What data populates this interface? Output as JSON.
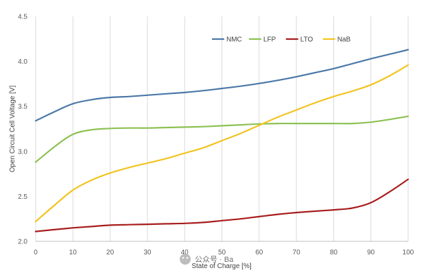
{
  "chart_data": {
    "type": "line",
    "xlabel": "State of Charge [%]",
    "ylabel": "Open Circuit Cell Voltage [V]",
    "xlim": [
      0,
      100
    ],
    "ylim": [
      2.0,
      4.5
    ],
    "x_ticks": [
      0,
      10,
      20,
      30,
      40,
      50,
      60,
      70,
      80,
      90,
      100
    ],
    "y_ticks": [
      2.0,
      2.5,
      3.0,
      3.5,
      4.0,
      4.5
    ],
    "x_tick_labels": [
      "0",
      "10",
      "20",
      "30",
      "40",
      "50",
      "60",
      "70",
      "80",
      "90",
      "100"
    ],
    "y_tick_labels": [
      "2.0",
      "2.5",
      "3.0",
      "3.5",
      "4.0",
      "4.5"
    ],
    "grid": "vertical",
    "legend_position": "top-right",
    "x": [
      0,
      5,
      10,
      15,
      20,
      25,
      30,
      35,
      40,
      45,
      50,
      55,
      60,
      65,
      70,
      75,
      80,
      85,
      90,
      95,
      100
    ],
    "series": [
      {
        "name": "NMC",
        "color": "#4a78a8",
        "values": [
          3.34,
          3.44,
          3.53,
          3.575,
          3.6,
          3.61,
          3.625,
          3.64,
          3.655,
          3.675,
          3.7,
          3.725,
          3.755,
          3.79,
          3.83,
          3.875,
          3.92,
          3.975,
          4.03,
          4.08,
          4.13
        ]
      },
      {
        "name": "LFP",
        "color": "#8cc152",
        "values": [
          2.88,
          3.05,
          3.19,
          3.24,
          3.255,
          3.26,
          3.26,
          3.265,
          3.27,
          3.275,
          3.285,
          3.295,
          3.305,
          3.31,
          3.31,
          3.31,
          3.31,
          3.31,
          3.325,
          3.355,
          3.39
        ]
      },
      {
        "name": "LTO",
        "color": "#a81c1c",
        "values": [
          2.11,
          2.13,
          2.15,
          2.165,
          2.18,
          2.185,
          2.19,
          2.195,
          2.2,
          2.21,
          2.23,
          2.25,
          2.275,
          2.3,
          2.32,
          2.335,
          2.35,
          2.37,
          2.43,
          2.55,
          2.69
        ]
      },
      {
        "name": "NaB",
        "color": "#f2c31f",
        "values": [
          2.22,
          2.4,
          2.57,
          2.68,
          2.76,
          2.82,
          2.87,
          2.92,
          2.98,
          3.04,
          3.12,
          3.2,
          3.29,
          3.38,
          3.46,
          3.54,
          3.61,
          3.67,
          3.74,
          3.84,
          3.96
        ]
      }
    ]
  },
  "watermark": {
    "text": "公众号 · Ba"
  }
}
